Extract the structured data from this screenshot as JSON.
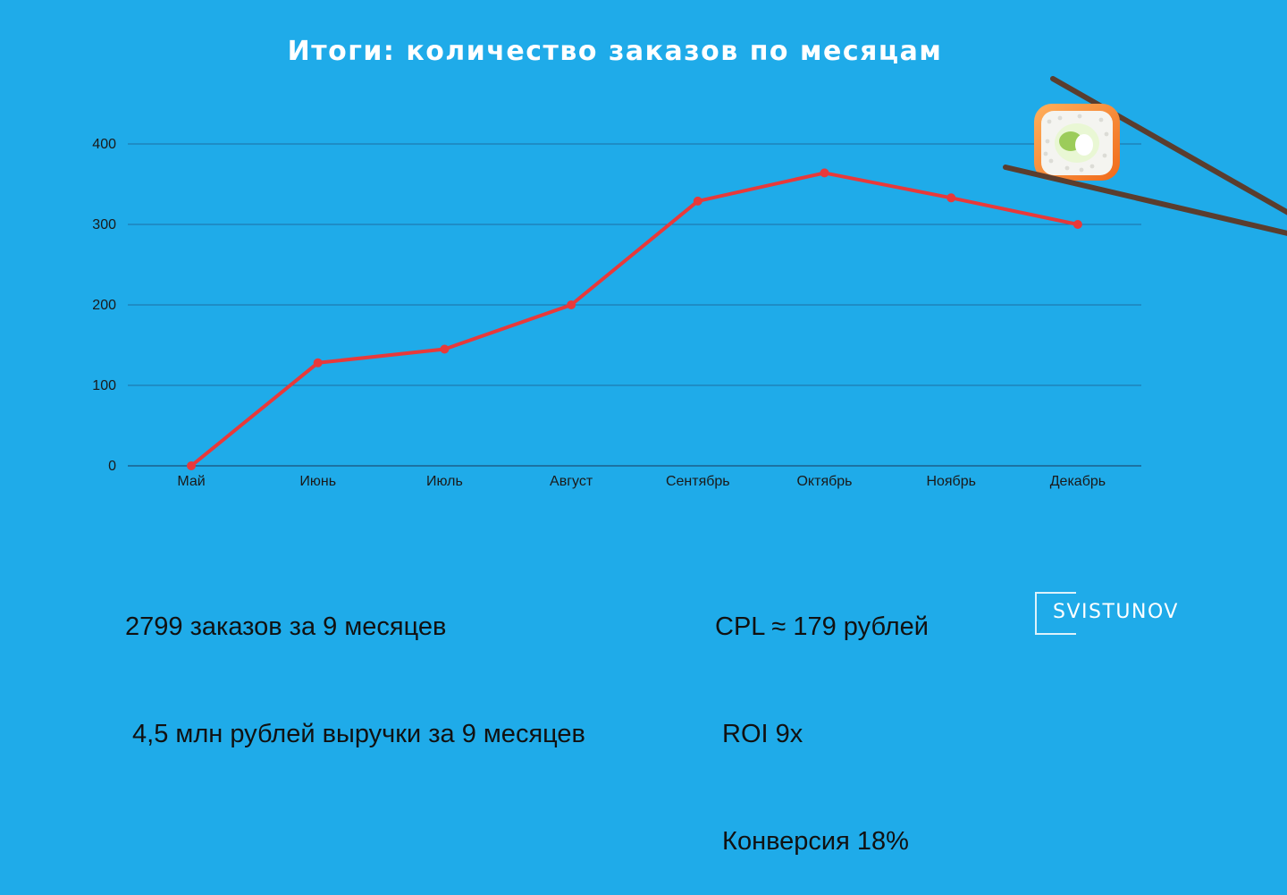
{
  "chart_data": {
    "type": "line",
    "title": "Итоги: количество заказов по месяцам",
    "categories": [
      "Май",
      "Июнь",
      "Июль",
      "Август",
      "Сентябрь",
      "Октябрь",
      "Ноябрь",
      "Декабрь"
    ],
    "values": [
      0,
      128,
      145,
      200,
      329,
      364,
      333,
      300
    ],
    "ylim": [
      0,
      400
    ],
    "yticks": [
      0,
      100,
      200,
      300,
      400
    ],
    "line_color": "#e8393a",
    "grid": true
  },
  "stats": {
    "orders": "2799 заказов за 9 месяцев",
    "revenue": " 4,5 млн рублей выручки за 9 месяцев",
    "cpl": "CPL ≈ 179 рублей",
    "roi": " ROI 9x",
    "conversion": " Конверсия 18%"
  },
  "logo": {
    "text": "SVISTUNOV"
  },
  "decoration": {
    "icon": "sushi-chopsticks-icon"
  }
}
